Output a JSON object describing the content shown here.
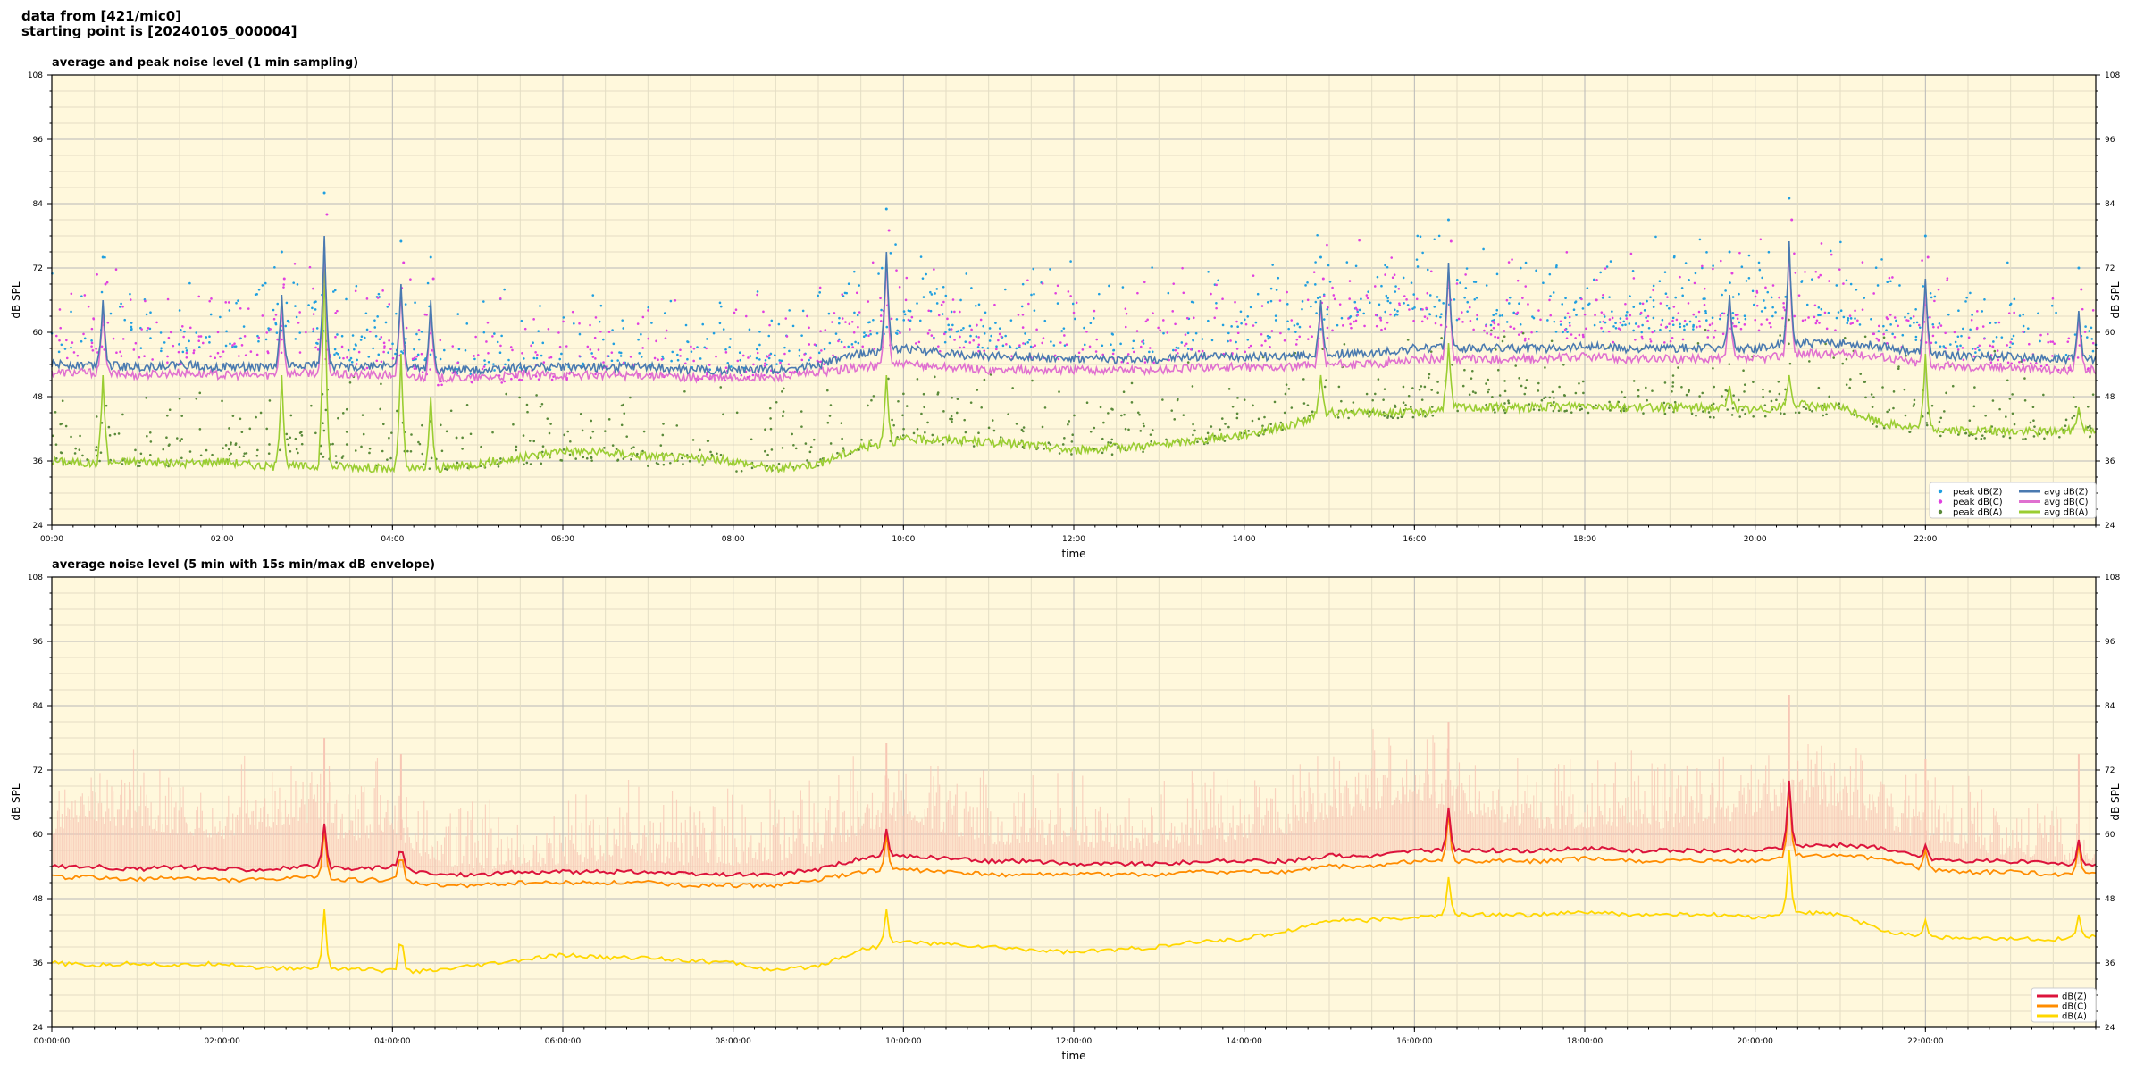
{
  "header": {
    "line1": "data from [421/mic0]",
    "line2": "starting point is [20240105_000004]"
  },
  "colors": {
    "plot_bg": "#fff8dc",
    "peak_z": "#1f9fe0",
    "peak_c": "#e040e0",
    "peak_a": "#5a8a3a",
    "avg_z": "#4a7ab0",
    "avg_c": "#e070d0",
    "avg_a": "#9acd32",
    "env": "#f7c6b4",
    "dbz": "#dc143c",
    "dbc": "#ff8c00",
    "dba": "#ffd700"
  },
  "chart_data": [
    {
      "type": "line",
      "title": "average and peak noise level (1 min sampling)",
      "xlabel": "time",
      "ylabel": "dB SPL",
      "xlim": [
        0,
        24
      ],
      "ylim": [
        24,
        108
      ],
      "yticks": [
        "24",
        "36",
        "48",
        "60",
        "72",
        "84",
        "96",
        "108"
      ],
      "xtick_values": [
        0,
        2,
        4,
        6,
        8,
        10,
        12,
        14,
        16,
        18,
        20,
        22
      ],
      "xtick_labels": [
        "00:00",
        "02:00",
        "04:00",
        "06:00",
        "08:00",
        "10:00",
        "12:00",
        "14:00",
        "16:00",
        "18:00",
        "20:00",
        "22:00"
      ],
      "grid": true,
      "legend_placement": "lower right",
      "legend": [
        "peak dB(Z)",
        "peak dB(C)",
        "peak dB(A)",
        "avg dB(Z)",
        "avg dB(C)",
        "avg dB(A)"
      ],
      "x": [
        0,
        0.5,
        1,
        1.5,
        2,
        2.5,
        3,
        3.5,
        4,
        4.5,
        5,
        5.5,
        6,
        6.5,
        7,
        7.5,
        8,
        8.5,
        9,
        9.5,
        10,
        10.5,
        11,
        11.5,
        12,
        12.5,
        13,
        13.5,
        14,
        14.5,
        15,
        15.5,
        16,
        16.5,
        17,
        17.5,
        18,
        18.5,
        19,
        19.5,
        20,
        20.5,
        21,
        21.5,
        22,
        22.5,
        23,
        23.5,
        24
      ],
      "series": [
        {
          "name": "avg dB(Z)",
          "values": [
            54,
            54,
            53.5,
            54,
            53.5,
            53.5,
            54,
            53.5,
            54,
            53,
            53,
            53.5,
            53.5,
            53.5,
            53.5,
            53,
            53,
            53,
            54,
            56,
            57,
            56,
            55.5,
            55.5,
            55,
            55,
            55,
            55.5,
            55.5,
            55.5,
            56,
            56,
            57,
            57,
            57,
            57,
            57.5,
            57,
            57,
            57,
            57,
            58,
            58,
            57.5,
            56,
            55.5,
            55.5,
            55,
            55
          ]
        },
        {
          "name": "avg dB(C)",
          "values": [
            52.5,
            52.5,
            52,
            52.5,
            52,
            52,
            52.5,
            52,
            52,
            51.5,
            51.5,
            52,
            52,
            52,
            52,
            51.5,
            51.5,
            51.5,
            52.5,
            53.5,
            54,
            53.5,
            53,
            53,
            53,
            53,
            53,
            53.5,
            53.5,
            53.5,
            54,
            54,
            55,
            55,
            55,
            55,
            55.5,
            55,
            55,
            55,
            55,
            56,
            56,
            55.5,
            54,
            53.5,
            53.5,
            53,
            53
          ]
        },
        {
          "name": "avg dB(A)",
          "values": [
            36,
            35.5,
            36,
            35.5,
            36,
            35,
            35,
            35,
            34.5,
            34.5,
            35.5,
            36.5,
            38,
            37.5,
            37,
            36.5,
            36,
            34.5,
            35.5,
            38.5,
            40,
            40,
            39.5,
            39,
            38,
            38.5,
            39,
            40,
            41,
            42.5,
            45,
            45,
            45,
            46,
            46,
            46,
            46.5,
            46,
            46,
            46,
            45.5,
            46.5,
            46,
            43,
            42,
            41.5,
            41.5,
            41.5,
            42
          ]
        },
        {
          "name": "peak dB(Z)",
          "values": [
            62,
            64,
            63,
            62,
            63,
            64,
            65,
            60,
            62,
            58,
            58,
            59,
            59,
            60,
            60,
            59,
            59,
            60,
            61,
            64,
            66,
            64,
            63,
            63,
            63,
            62,
            62,
            63,
            64,
            65,
            67,
            68,
            70,
            68,
            67,
            66,
            66,
            66,
            66,
            67,
            68,
            70,
            68,
            66,
            64,
            62,
            62,
            61,
            61
          ]
        },
        {
          "name": "peak dB(C)",
          "values": [
            60,
            62,
            61,
            60,
            61,
            62,
            62,
            58,
            60,
            56,
            56,
            57,
            57,
            58,
            58,
            57,
            57,
            58,
            59,
            62,
            64,
            62,
            61,
            61,
            61,
            60,
            60,
            61,
            62,
            63,
            65,
            66,
            68,
            66,
            65,
            64,
            64,
            64,
            64,
            65,
            66,
            68,
            66,
            64,
            62,
            60,
            60,
            59,
            59
          ]
        },
        {
          "name": "peak dB(A)",
          "values": [
            41,
            42,
            41,
            41,
            42,
            42,
            43,
            41,
            41,
            40,
            40,
            41,
            42,
            42,
            41,
            41,
            40,
            40,
            41,
            44,
            46,
            45,
            44,
            44,
            43,
            43,
            44,
            45,
            46,
            48,
            50,
            50,
            50,
            51,
            51,
            51,
            51,
            51,
            50,
            50,
            50,
            51,
            50,
            48,
            47,
            46,
            46,
            46,
            46
          ]
        }
      ],
      "spikes": [
        {
          "x": 0.6,
          "z": 66,
          "c": 64,
          "a": 52
        },
        {
          "x": 2.7,
          "z": 67,
          "c": 65,
          "a": 52
        },
        {
          "x": 3.2,
          "z": 78,
          "c": 77,
          "a": 74
        },
        {
          "x": 4.1,
          "z": 69,
          "c": 68,
          "a": 56
        },
        {
          "x": 4.45,
          "z": 66,
          "c": 65,
          "a": 48
        },
        {
          "x": 9.8,
          "z": 75,
          "c": 74,
          "a": 52
        },
        {
          "x": 14.9,
          "z": 66,
          "c": 65,
          "a": 52
        },
        {
          "x": 16.4,
          "z": 73,
          "c": 72,
          "a": 58
        },
        {
          "x": 19.7,
          "z": 67,
          "c": 66,
          "a": 50
        },
        {
          "x": 20.4,
          "z": 77,
          "c": 76,
          "a": 52
        },
        {
          "x": 22.0,
          "z": 70,
          "c": 69,
          "a": 56
        },
        {
          "x": 23.8,
          "z": 64,
          "c": 63,
          "a": 46
        }
      ]
    },
    {
      "type": "line",
      "title": "average noise level (5 min with 15s min/max dB envelope)",
      "xlabel": "time",
      "ylabel": "dB SPL",
      "xlim": [
        0,
        24
      ],
      "ylim": [
        24,
        108
      ],
      "yticks": [
        "24",
        "36",
        "48",
        "60",
        "72",
        "84",
        "96",
        "108"
      ],
      "xtick_values": [
        0,
        2,
        4,
        6,
        8,
        10,
        12,
        14,
        16,
        18,
        20,
        22
      ],
      "xtick_labels": [
        "00:00:00",
        "02:00:00",
        "04:00:00",
        "06:00:00",
        "08:00:00",
        "10:00:00",
        "12:00:00",
        "14:00:00",
        "16:00:00",
        "18:00:00",
        "20:00:00",
        "22:00:00"
      ],
      "grid": true,
      "legend_placement": "lower right",
      "legend": [
        "dB(Z)",
        "dB(C)",
        "dB(A)"
      ],
      "x": [
        0,
        0.5,
        1,
        1.5,
        2,
        2.5,
        3,
        3.5,
        4,
        4.5,
        5,
        5.5,
        6,
        6.5,
        7,
        7.5,
        8,
        8.5,
        9,
        9.5,
        10,
        10.5,
        11,
        11.5,
        12,
        12.5,
        13,
        13.5,
        14,
        14.5,
        15,
        15.5,
        16,
        16.5,
        17,
        17.5,
        18,
        18.5,
        19,
        19.5,
        20,
        20.5,
        21,
        21.5,
        22,
        22.5,
        23,
        23.5,
        24
      ],
      "series": [
        {
          "name": "dB(Z)",
          "values": [
            54,
            54,
            53.5,
            54,
            53.5,
            53.5,
            54,
            53.5,
            54,
            52.5,
            52.5,
            53,
            53,
            53,
            53,
            52.5,
            52.5,
            52.5,
            53.5,
            55.5,
            56,
            55.5,
            55,
            55,
            54.5,
            54.5,
            54.5,
            55,
            55,
            55,
            56,
            56,
            57,
            57,
            57,
            57,
            57.5,
            57,
            57,
            57,
            57,
            58,
            58,
            57.5,
            55.5,
            55,
            55,
            54.5,
            54.5
          ]
        },
        {
          "name": "dB(C)",
          "values": [
            52,
            52,
            51.5,
            52,
            51.5,
            51.5,
            52,
            51.5,
            51.5,
            50.5,
            50.5,
            51,
            51,
            51,
            51,
            50.5,
            50.5,
            50.5,
            51.5,
            53,
            53.5,
            53,
            52.5,
            52.5,
            52.5,
            52.5,
            52.5,
            53,
            53,
            53,
            54,
            54,
            55,
            55,
            55,
            55,
            55.5,
            55,
            55,
            55,
            55,
            56,
            56,
            55.5,
            53.5,
            53,
            53,
            52.5,
            52.5
          ]
        },
        {
          "name": "dB(A)",
          "values": [
            36,
            35.5,
            36,
            35.5,
            36,
            35,
            35,
            35,
            34.5,
            34.5,
            35.5,
            36.5,
            37.5,
            37,
            37,
            36.5,
            36,
            34.5,
            35.5,
            38.5,
            40,
            39.5,
            39,
            38.5,
            38,
            38.5,
            39,
            40,
            40.5,
            42,
            44,
            44,
            44.5,
            45,
            45,
            45,
            45.5,
            45,
            45,
            45,
            44.5,
            45.5,
            45,
            42,
            41,
            40.5,
            40.5,
            40.5,
            41
          ]
        }
      ],
      "envelope_max": [
        64,
        66,
        65,
        64,
        63,
        65,
        66,
        62,
        64,
        58,
        57,
        58,
        58,
        59,
        59,
        58,
        58,
        59,
        60,
        64,
        67,
        64,
        62,
        62,
        62,
        61,
        61,
        62,
        63,
        64,
        67,
        68,
        70,
        68,
        66,
        65,
        65,
        65,
        65,
        66,
        67,
        70,
        68,
        65,
        63,
        61,
        60,
        59,
        59
      ],
      "spikes": [
        {
          "x": 3.2,
          "z": 62,
          "c": 61,
          "a": 46
        },
        {
          "x": 4.1,
          "z": 59,
          "c": 58,
          "a": 43
        },
        {
          "x": 9.8,
          "z": 61,
          "c": 60,
          "a": 46
        },
        {
          "x": 16.4,
          "z": 65,
          "c": 64,
          "a": 52
        },
        {
          "x": 20.4,
          "z": 70,
          "c": 69,
          "a": 57
        },
        {
          "x": 22.0,
          "z": 58,
          "c": 57,
          "a": 44
        },
        {
          "x": 23.8,
          "z": 59,
          "c": 58,
          "a": 45
        }
      ]
    }
  ]
}
